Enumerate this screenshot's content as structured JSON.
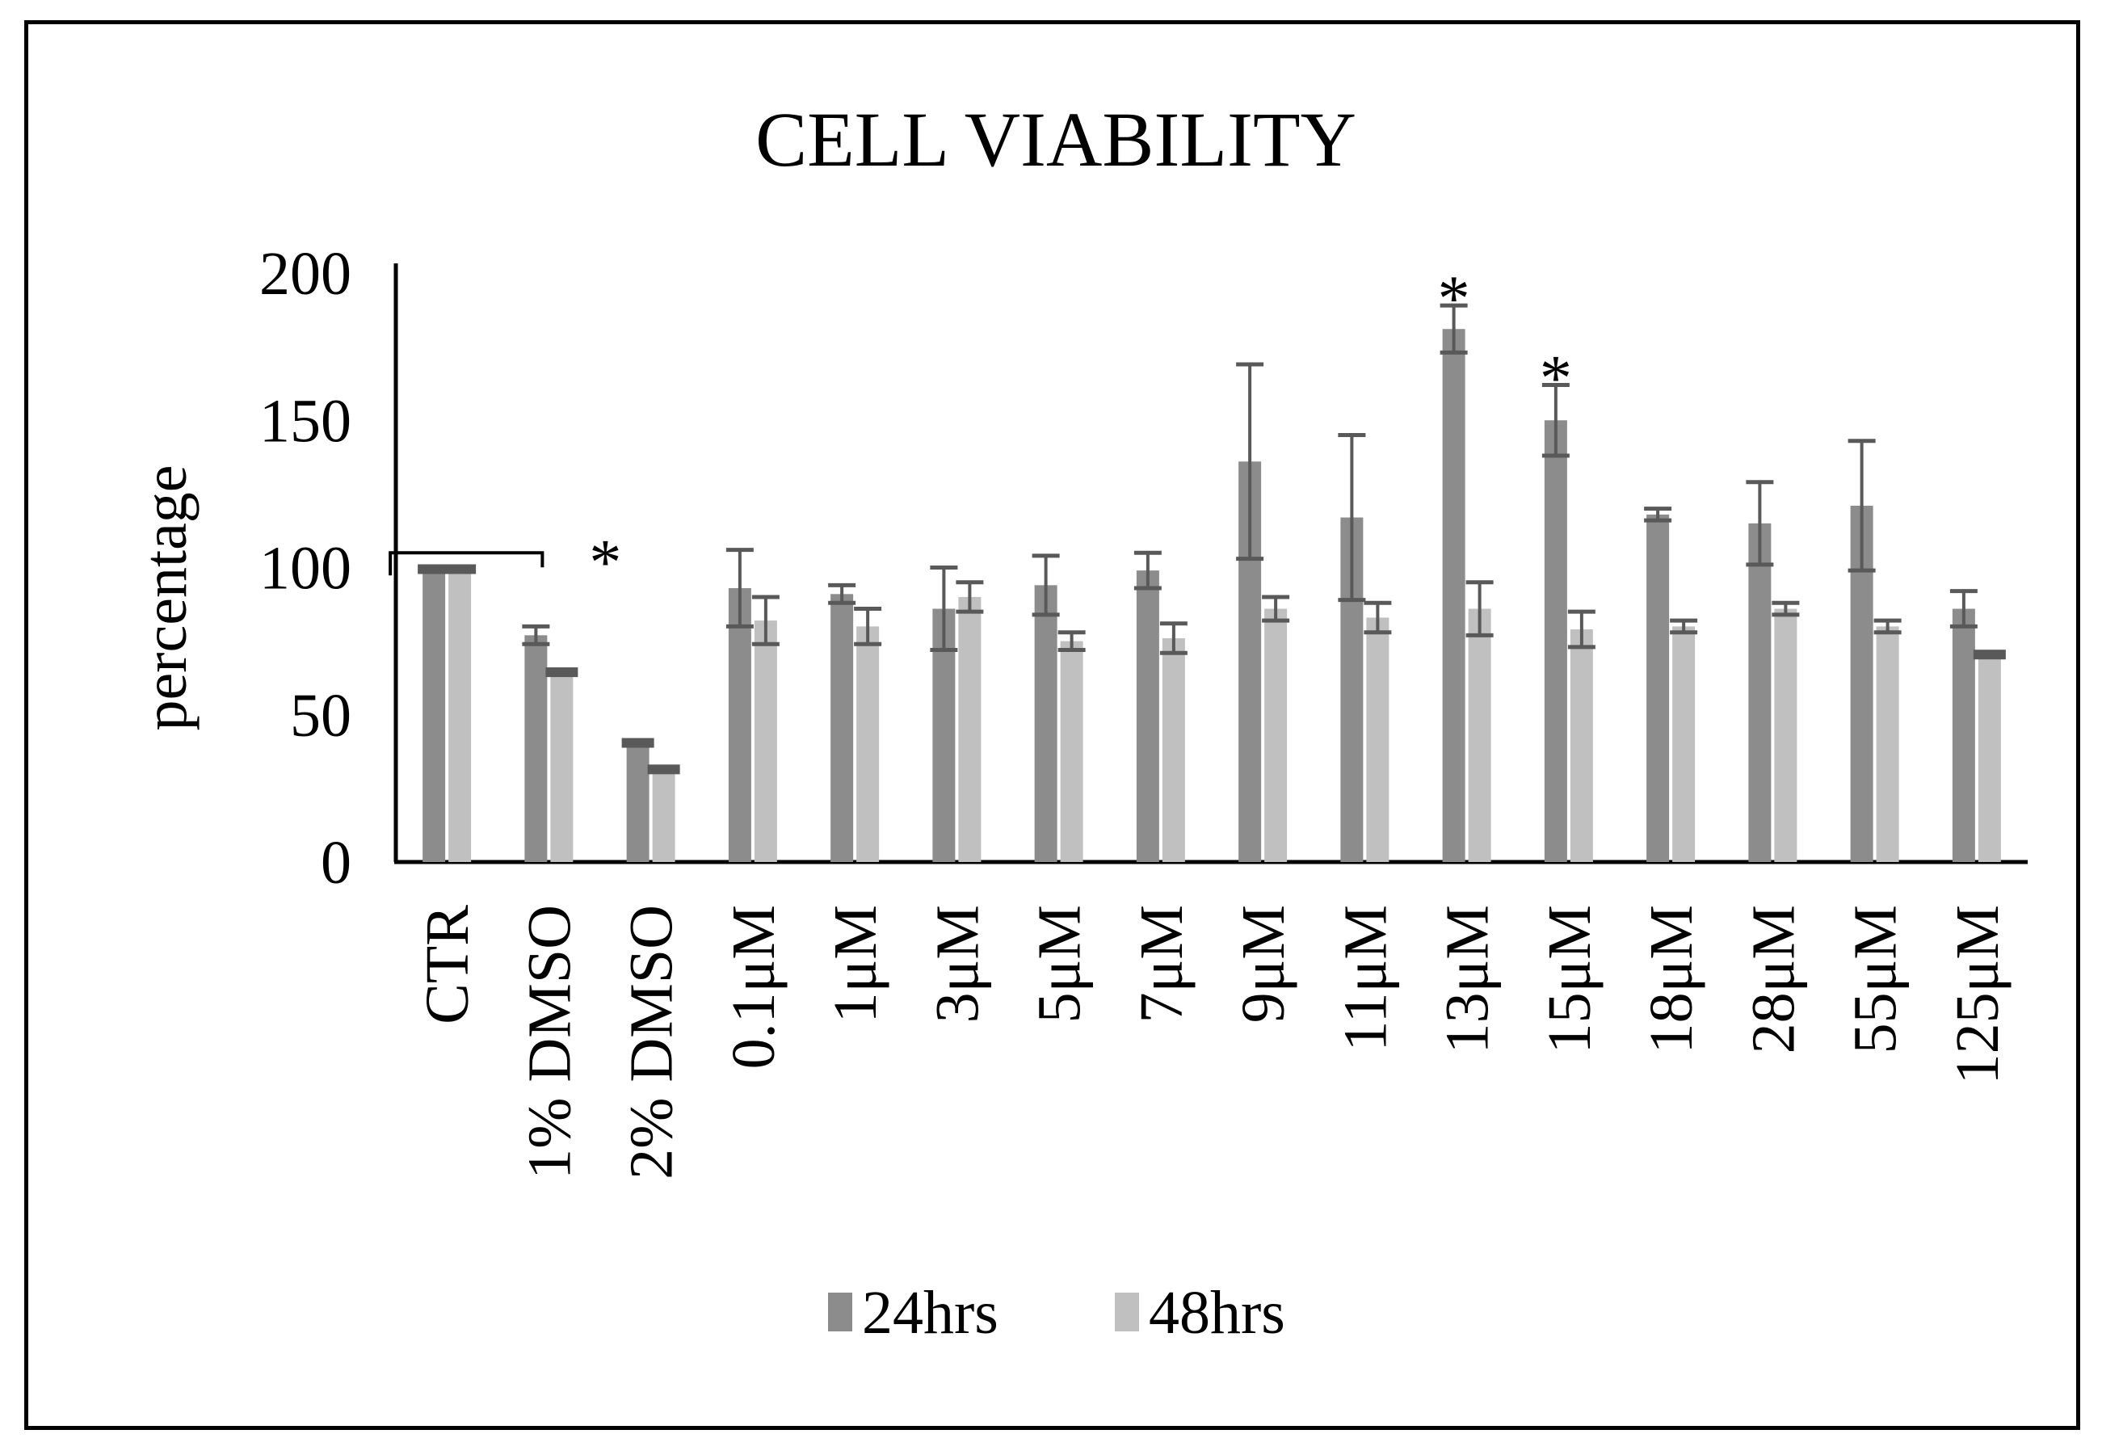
{
  "chart_data": {
    "type": "bar",
    "title": "CELL VIABILITY",
    "xlabel": "",
    "ylabel": "percentage",
    "ylim": [
      0,
      200
    ],
    "yticks": [
      0,
      50,
      100,
      150,
      200
    ],
    "grid": false,
    "legend_position": "bottom",
    "categories": [
      "CTR",
      "1% DMSO",
      "2% DMSO",
      "0.1μM",
      "1μM",
      "3μM",
      "5μM",
      "7μM",
      "9μM",
      "11μM",
      "13μM",
      "15μM",
      "18μM",
      "28μM",
      "55μM",
      "125μM"
    ],
    "series": [
      {
        "name": "24hrs",
        "color": "#8c8c8c",
        "values": [
          100,
          77,
          41,
          93,
          91,
          86,
          94,
          99,
          136,
          117,
          181,
          150,
          118,
          115,
          121,
          86
        ],
        "errors": [
          1,
          3,
          1,
          13,
          3,
          14,
          10,
          6,
          33,
          28,
          8,
          12,
          2,
          14,
          22,
          6
        ]
      },
      {
        "name": "48hrs",
        "color": "#c0c0c0",
        "values": [
          100,
          65,
          32,
          82,
          80,
          90,
          75,
          76,
          86,
          83,
          86,
          79,
          80,
          86,
          80,
          71
        ],
        "errors": [
          1,
          1,
          1,
          8,
          6,
          5,
          3,
          5,
          4,
          5,
          9,
          6,
          2,
          2,
          2,
          1
        ]
      }
    ],
    "annotations": [
      {
        "text": "*",
        "category": "1% DMSO"
      },
      {
        "text": "*",
        "category": "13μM"
      },
      {
        "text": "*",
        "category": "15μM"
      }
    ],
    "bracket": {
      "from": "CTR",
      "to": "1% DMSO",
      "level": 105
    }
  }
}
